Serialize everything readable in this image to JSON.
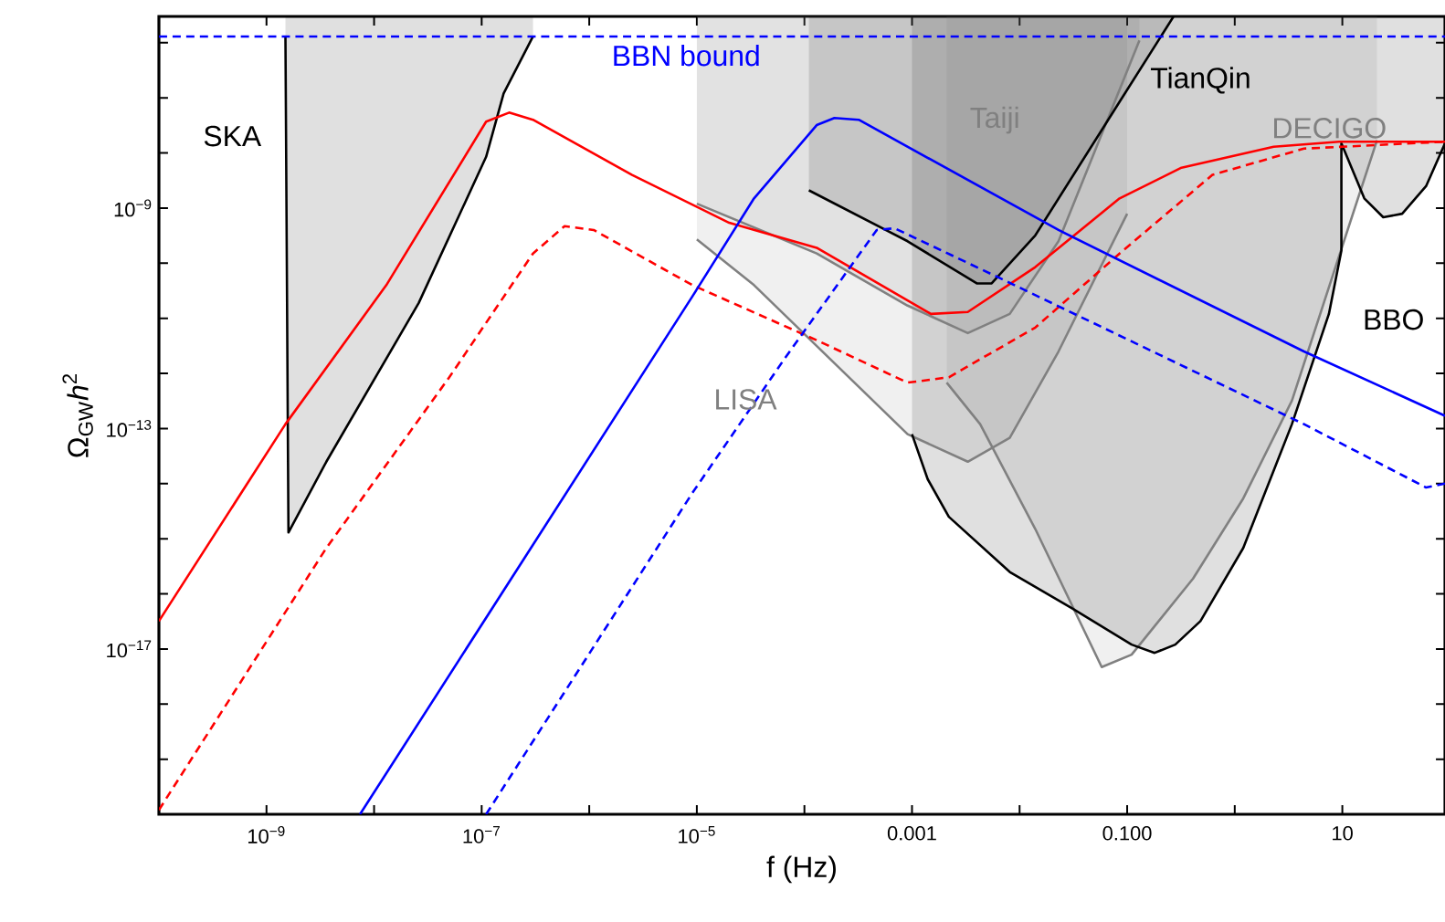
{
  "chart_data": {
    "type": "line",
    "xlabel": "f (Hz)",
    "ylabel": "Ω$_{GW}$*h*$^{2}$",
    "log": "xy",
    "xlim": [
      1e-10,
      90
    ],
    "ylim": [
      1e-20,
      3e-06
    ],
    "xticks": [
      {
        "value": 1e-10,
        "label": null
      },
      {
        "value": 1e-09,
        "label": "10$^{−9}$"
      },
      {
        "value": 1e-08,
        "label": null
      },
      {
        "value": 1e-07,
        "label": "10$^{−7}$"
      },
      {
        "value": 1e-06,
        "label": null
      },
      {
        "value": 1e-05,
        "label": "10$^{−5}$"
      },
      {
        "value": 0.0001,
        "label": null
      },
      {
        "value": 0.001,
        "label": "0.001"
      },
      {
        "value": 0.01,
        "label": null
      },
      {
        "value": 0.1,
        "label": "0.100"
      },
      {
        "value": 1,
        "label": null
      },
      {
        "value": 10,
        "label": "10"
      }
    ],
    "yticks": [
      {
        "value": 1e-20,
        "label": null
      },
      {
        "value": 1e-19,
        "label": null
      },
      {
        "value": 1e-18,
        "label": null
      },
      {
        "value": 1e-17,
        "label": "10$^{−17}$"
      },
      {
        "value": 1e-16,
        "label": null
      },
      {
        "value": 1e-15,
        "label": null
      },
      {
        "value": 1e-14,
        "label": null
      },
      {
        "value": 1e-13,
        "label": "10$^{−13}$"
      },
      {
        "value": 1e-12,
        "label": null
      },
      {
        "value": 1e-11,
        "label": null
      },
      {
        "value": 1e-10,
        "label": null
      },
      {
        "value": 1e-09,
        "label": "10$^{−9}$"
      },
      {
        "value": 1e-08,
        "label": null
      },
      {
        "value": 1e-07,
        "label": null
      },
      {
        "value": 1e-06,
        "label": null
      }
    ],
    "series": [
      {
        "color": "#ff0000",
        "line_style": "solid",
        "x": [
          1e-10,
          1.5e-09,
          1.3e-08,
          1.1e-07,
          1.8e-07,
          3e-07,
          2.5e-06,
          2e-05,
          0.00013,
          0.0015,
          0.0033,
          0.014,
          0.085,
          0.32,
          2.3,
          9.3,
          90
        ],
        "values": [
          3.2e-17,
          1.2e-13,
          4e-11,
          3.7e-08,
          5.4e-08,
          4e-08,
          4e-09,
          5.4e-10,
          1.9e-10,
          1.2e-11,
          1.3e-11,
          8.5e-11,
          1.5e-09,
          5.4e-09,
          1.3e-08,
          1.6e-08,
          1.6e-08
        ]
      },
      {
        "color": "#ff0000",
        "line_style": "dashed",
        "x": [
          1e-10,
          3.6e-09,
          5e-08,
          3e-07,
          5.9e-07,
          1.1e-06,
          9.1e-06,
          0.00013,
          0.00091,
          0.0022,
          0.014,
          0.085,
          0.62,
          4.4,
          90
        ],
        "values": [
          1.2e-20,
          6.8e-16,
          8.5e-13,
          1.5e-10,
          4.7e-10,
          4e-10,
          4e-11,
          4e-12,
          6.8e-13,
          8.5e-13,
          6.8e-12,
          1.5e-10,
          4e-09,
          1.2e-08,
          1.6e-08
        ]
      },
      {
        "color": "#0000ff",
        "line_style": "solid",
        "x": [
          7.4e-09,
          9.1e-06,
          3.4e-05,
          0.00013,
          0.00019,
          0.00032,
          0.023,
          4.4,
          90
        ],
        "values": [
          1e-20,
          2.5e-11,
          1.5e-09,
          3.2e-08,
          4.3e-08,
          4e-08,
          4e-10,
          2.5e-12,
          1.7e-13
        ]
      },
      {
        "color": "#0000ff",
        "line_style": "dashed",
        "x": [
          1.1e-07,
          9.1e-06,
          6.6e-05,
          0.00047,
          0.00069,
          0.0065,
          4.4,
          60,
          90
        ],
        "values": [
          1e-20,
          6.8e-15,
          1.9e-12,
          4e-10,
          4.3e-10,
          5.4e-11,
          1.2e-13,
          8.5e-15,
          1e-14
        ]
      },
      {
        "type": "area",
        "name": "SKA",
        "color": "#000000",
        "x": [
          1.5e-09,
          1.6e-09,
          3.6e-09,
          2.6e-08,
          1.1e-07,
          1.6e-07,
          3e-07
        ],
        "values": [
          1.3e-06,
          1.3e-15,
          2.5e-14,
          1.9e-11,
          8.5e-09,
          1.2e-07,
          1.3e-06
        ]
      },
      {
        "type": "area",
        "name": "LISA",
        "color": "#808080",
        "x": [
          1e-05,
          3.4e-05,
          0.00091,
          0.0033,
          0.0081,
          0.023,
          0.1
        ],
        "values": [
          2.7e-10,
          4e-11,
          7.9e-14,
          2.5e-14,
          6.8e-14,
          2.5e-12,
          7.9e-10
        ]
      },
      {
        "type": "area",
        "name": "Taiji",
        "color": "#808080",
        "x": [
          1e-05,
          0.00013,
          0.00091,
          0.0033,
          0.0081,
          0.023,
          0.13
        ],
        "values": [
          1.2e-09,
          1.5e-10,
          1.7e-11,
          5.4e-12,
          1.2e-11,
          2.5e-10,
          1.1e-06
        ]
      },
      {
        "type": "area",
        "name": "TianQin",
        "color": "#000000",
        "x": [
          0.00011,
          0.00091,
          0.004,
          0.0055,
          0.014,
          0.085,
          0.27
        ],
        "values": [
          2.1e-09,
          2.5e-10,
          4.3e-11,
          4.3e-11,
          3.2e-10,
          8.5e-08,
          3e-06
        ]
      },
      {
        "type": "area",
        "name": "DECIGO",
        "color": "#808080",
        "x": [
          0.0021,
          0.0043,
          0.014,
          0.058,
          0.11,
          0.41,
          1.2,
          3.4,
          9.5,
          21
        ],
        "values": [
          6.8e-13,
          1.2e-13,
          1.5e-15,
          4.7e-18,
          7.9e-18,
          1.9e-16,
          5.4e-15,
          3.2e-13,
          1.5e-10,
          1.7e-08
        ]
      },
      {
        "type": "area",
        "name": "BBO",
        "color": "#000000",
        "x": [
          0.001,
          0.0014,
          0.0022,
          0.0081,
          0.031,
          0.11,
          0.18,
          0.28,
          0.48,
          1.2,
          3.4,
          7.5,
          9.8,
          9.8,
          16,
          24,
          36,
          60,
          90
        ],
        "values": [
          7.9e-14,
          1.2e-14,
          2.5e-15,
          2.5e-16,
          5.4e-17,
          1.2e-17,
          8.5e-18,
          1.2e-17,
          3.2e-17,
          6.8e-16,
          1.2e-13,
          1.2e-11,
          1.7e-10,
          1.5e-08,
          1.5e-09,
          6.8e-10,
          7.9e-10,
          2.5e-09,
          1.5e-08
        ]
      }
    ],
    "ref_lines": [
      {
        "axis": "y",
        "value": 1.3e-06,
        "label": "BBN bound",
        "color": "#0000ff",
        "line_style": "dashed"
      }
    ]
  }
}
